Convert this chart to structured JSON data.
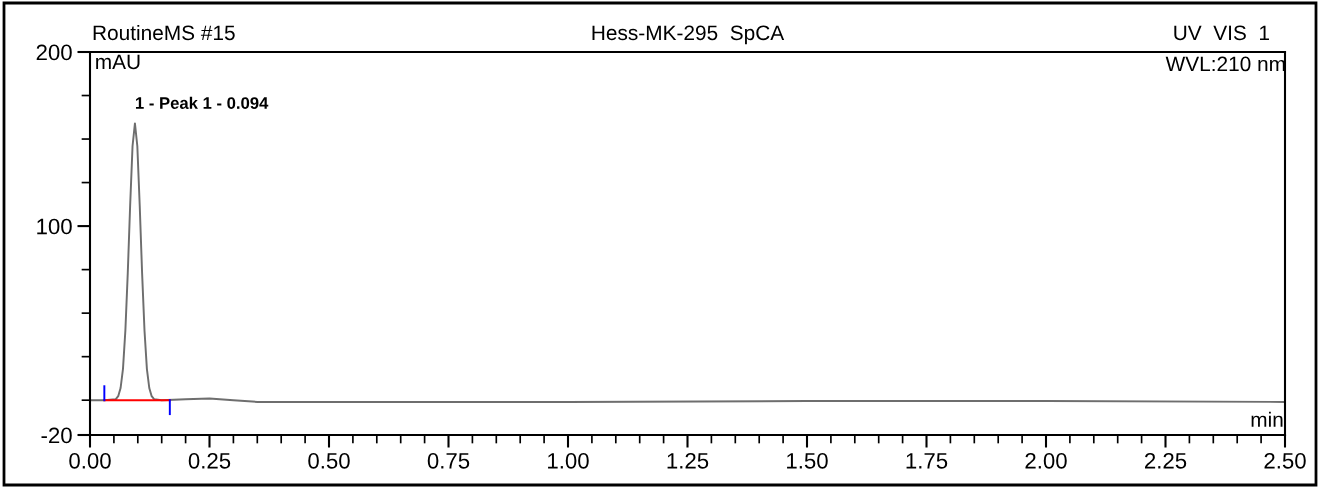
{
  "chart_data": {
    "type": "line",
    "title": "Hess-MK-295  SpCA",
    "ylabel": "mAU",
    "xlabel": "min",
    "annotations": [
      "RoutineMS #15",
      "UV  VIS  1",
      "WVL:210 nm",
      {
        "text": "1 - Peak 1 - 0.094",
        "x": 0.094,
        "y": 159
      }
    ],
    "series": [
      {
        "color": "#6e6e6e",
        "x": [
          0.0,
          0.03,
          0.054,
          0.059,
          0.064,
          0.069,
          0.074,
          0.079,
          0.084,
          0.089,
          0.094,
          0.099,
          0.104,
          0.109,
          0.114,
          0.119,
          0.124,
          0.129,
          0.134,
          0.15,
          0.2,
          0.25,
          0.3,
          0.35,
          0.5,
          1.0,
          1.5,
          2.0,
          2.5
        ],
        "values": [
          0,
          0,
          0.6,
          2.3,
          7,
          18,
          40,
          73,
          112,
          146,
          159,
          146,
          112,
          73,
          40,
          18,
          7,
          2.3,
          0.6,
          0,
          0.5,
          1,
          0,
          -1,
          -1,
          -1,
          -0.5,
          -0.5,
          -1
        ]
      },
      {
        "color": "#ff0000",
        "x": [
          0.03,
          0.167
        ],
        "values": [
          0,
          0
        ]
      },
      {
        "color": "#0000ff",
        "x": [
          0.03,
          0.03
        ],
        "values": [
          0,
          8
        ]
      },
      {
        "color": "#0000ff",
        "x": [
          0.167,
          0.167
        ],
        "values": [
          0,
          -8
        ]
      }
    ],
    "xlim": [
      0,
      2.5
    ],
    "ylim": [
      -20,
      200
    ],
    "xticks": [
      {
        "value": 0,
        "label": "0.00"
      },
      {
        "value": 0.05,
        "label": null
      },
      {
        "value": 0.1,
        "label": null
      },
      {
        "value": 0.15,
        "label": null
      },
      {
        "value": 0.2,
        "label": null
      },
      {
        "value": 0.25,
        "label": "0.25"
      },
      {
        "value": 0.3,
        "label": null
      },
      {
        "value": 0.35,
        "label": null
      },
      {
        "value": 0.4,
        "label": null
      },
      {
        "value": 0.45,
        "label": null
      },
      {
        "value": 0.5,
        "label": "0.50"
      },
      {
        "value": 0.55,
        "label": null
      },
      {
        "value": 0.6,
        "label": null
      },
      {
        "value": 0.65,
        "label": null
      },
      {
        "value": 0.7,
        "label": null
      },
      {
        "value": 0.75,
        "label": "0.75"
      },
      {
        "value": 0.8,
        "label": null
      },
      {
        "value": 0.85,
        "label": null
      },
      {
        "value": 0.9,
        "label": null
      },
      {
        "value": 0.95,
        "label": null
      },
      {
        "value": 1.0,
        "label": "1.00"
      },
      {
        "value": 1.05,
        "label": null
      },
      {
        "value": 1.1,
        "label": null
      },
      {
        "value": 1.15,
        "label": null
      },
      {
        "value": 1.2,
        "label": null
      },
      {
        "value": 1.25,
        "label": "1.25"
      },
      {
        "value": 1.3,
        "label": null
      },
      {
        "value": 1.35,
        "label": null
      },
      {
        "value": 1.4,
        "label": null
      },
      {
        "value": 1.45,
        "label": null
      },
      {
        "value": 1.5,
        "label": "1.50"
      },
      {
        "value": 1.55,
        "label": null
      },
      {
        "value": 1.6,
        "label": null
      },
      {
        "value": 1.65,
        "label": null
      },
      {
        "value": 1.7,
        "label": null
      },
      {
        "value": 1.75,
        "label": "1.75"
      },
      {
        "value": 1.8,
        "label": null
      },
      {
        "value": 1.85,
        "label": null
      },
      {
        "value": 1.9,
        "label": null
      },
      {
        "value": 1.95,
        "label": null
      },
      {
        "value": 2.0,
        "label": "2.00"
      },
      {
        "value": 2.05,
        "label": null
      },
      {
        "value": 2.1,
        "label": null
      },
      {
        "value": 2.15,
        "label": null
      },
      {
        "value": 2.2,
        "label": null
      },
      {
        "value": 2.25,
        "label": "2.25"
      },
      {
        "value": 2.3,
        "label": null
      },
      {
        "value": 2.35,
        "label": null
      },
      {
        "value": 2.4,
        "label": null
      },
      {
        "value": 2.45,
        "label": null
      },
      {
        "value": 2.5,
        "label": "2.50"
      }
    ],
    "yticks": [
      -20,
      {
        "value": 0,
        "label": null
      },
      {
        "value": 25,
        "label": null
      },
      {
        "value": 50,
        "label": null
      },
      {
        "value": 75,
        "label": null
      },
      100,
      {
        "value": 125,
        "label": null
      },
      {
        "value": 150,
        "label": null
      },
      {
        "value": 175,
        "label": null
      },
      200
    ],
    "grid": false,
    "legend": false
  }
}
